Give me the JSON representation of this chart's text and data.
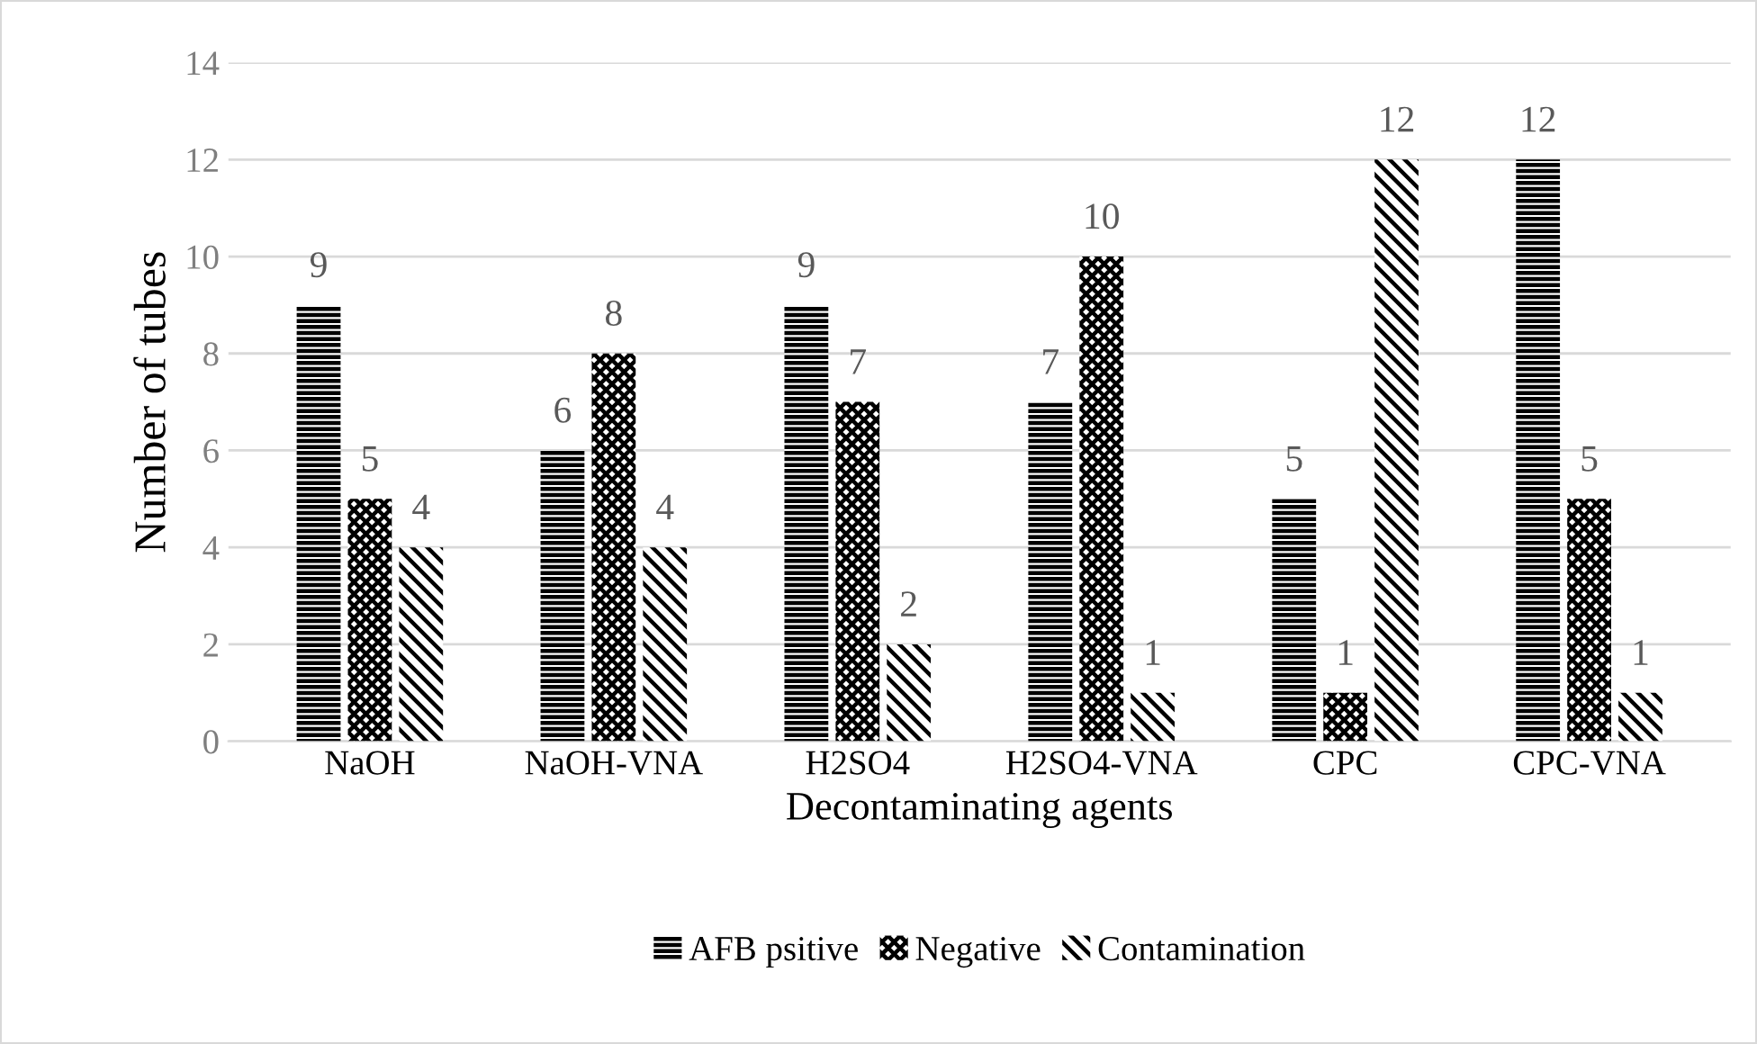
{
  "chart_data": {
    "type": "bar",
    "xlabel": "Decontaminating agents",
    "ylabel": "Number of tubes",
    "categories": [
      "NaOH",
      "NaOH-VNA",
      "H2SO4",
      "H2SO4-VNA",
      "CPC",
      "CPC-VNA"
    ],
    "series": [
      {
        "name": "AFB psitive",
        "color": "#000000",
        "values": [
          9,
          6,
          9,
          7,
          5,
          12
        ]
      },
      {
        "name": "Negative",
        "color": "#000000",
        "values": [
          5,
          8,
          7,
          10,
          1,
          5
        ]
      },
      {
        "name": "Contamination",
        "color": "#000000",
        "values": [
          4,
          4,
          2,
          1,
          12,
          1
        ]
      }
    ],
    "ylim": [
      0,
      14
    ],
    "yticks": [
      0,
      2,
      4,
      6,
      8,
      10,
      12,
      14
    ],
    "grid": "y",
    "legend": "bottom",
    "data_labels": true
  }
}
